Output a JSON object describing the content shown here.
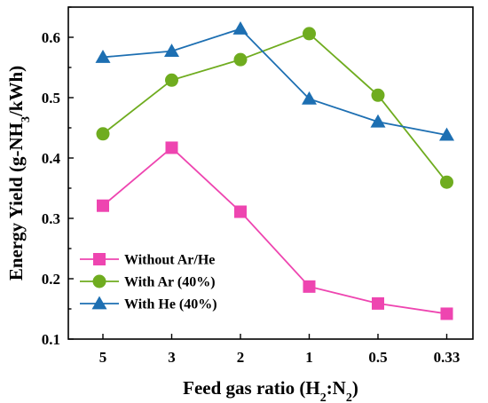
{
  "chart_data": {
    "type": "line",
    "categories": [
      "5",
      "3",
      "2",
      "1",
      "0.5",
      "0.33"
    ],
    "xlabel": "Feed gas ratio (H₂:N₂)",
    "xlabel_parts": [
      "Feed gas ratio (H",
      "2",
      ":N",
      "2",
      ")"
    ],
    "ylabel": "Energy Yield (g-NH₃/kWh)",
    "ylabel_parts": [
      "Energy Yield (g-NH",
      "3",
      "/kWh)"
    ],
    "ylim": [
      0.1,
      0.65
    ],
    "yticks": [
      0.1,
      0.2,
      0.3,
      0.4,
      0.5,
      0.6
    ],
    "ytick_labels": [
      "0.1",
      "0.2",
      "0.3",
      "0.4",
      "0.5",
      "0.6"
    ],
    "legend_position": "bottom-left",
    "grid": false,
    "series": [
      {
        "name": "Without Ar/He",
        "values": [
          0.321,
          0.417,
          0.311,
          0.187,
          0.159,
          0.142
        ],
        "color": "#ee45b0",
        "marker": "square"
      },
      {
        "name": "With Ar (40%)",
        "values": [
          0.44,
          0.529,
          0.563,
          0.606,
          0.504,
          0.36
        ],
        "color": "#6fac1f",
        "marker": "circle"
      },
      {
        "name": "With He (40%)",
        "values": [
          0.567,
          0.577,
          0.614,
          0.498,
          0.46,
          0.438
        ],
        "color": "#1d6fb2",
        "marker": "triangle"
      }
    ]
  }
}
